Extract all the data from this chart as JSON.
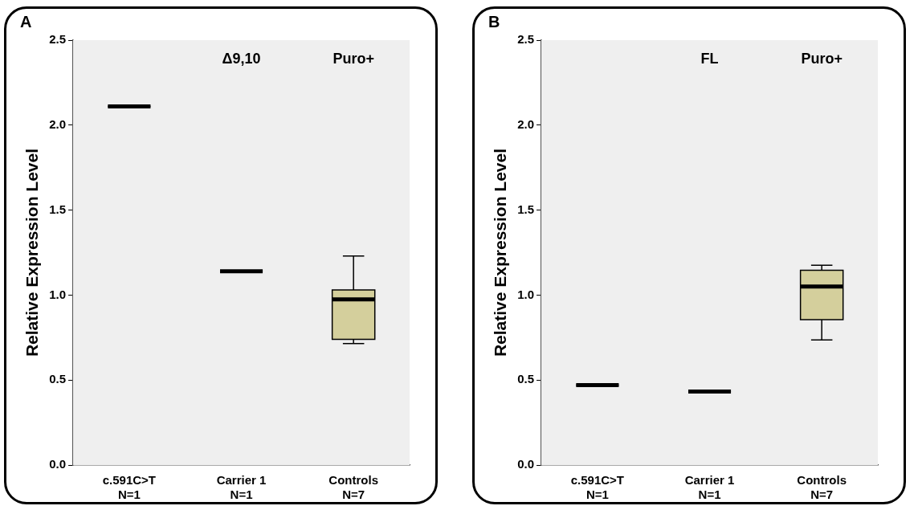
{
  "chart_data": [
    {
      "type": "box",
      "title": "A",
      "ylabel": "Relative Expression Level",
      "categories": [
        "c.591C>T\nN=1",
        "Carrier 1\nN=1",
        "Controls\nN=7"
      ],
      "colors": [
        "#000000",
        "#000000",
        "#d4cf9c"
      ],
      "boxes": [
        {
          "low": 2.11,
          "q1": 2.11,
          "median": 2.11,
          "q3": 2.11,
          "high": 2.11
        },
        {
          "low": 1.14,
          "q1": 1.14,
          "median": 1.14,
          "q3": 1.14,
          "high": 1.14
        },
        {
          "low": 0.715,
          "q1": 0.74,
          "median": 0.975,
          "q3": 1.03,
          "high": 1.23
        }
      ],
      "ylim": [
        0,
        2.5
      ],
      "yticks": [
        {
          "value": 0,
          "label": "0.0"
        },
        {
          "value": 0.5,
          "label": "0.5"
        },
        {
          "value": 1,
          "label": "1.0"
        },
        {
          "value": 1.5,
          "label": "1.5"
        },
        {
          "value": 2,
          "label": "2.0"
        },
        {
          "value": 2.5,
          "label": "2.5"
        }
      ],
      "annotations": [
        "Δ9,10",
        "Puro+"
      ],
      "grid": false
    },
    {
      "type": "box",
      "title": "B",
      "ylabel": "Relative Expression Level",
      "categories": [
        "c.591C>T\nN=1",
        "Carrier 1\nN=1",
        "Controls\nN=7"
      ],
      "colors": [
        "#000000",
        "#000000",
        "#d4cf9c"
      ],
      "boxes": [
        {
          "low": 0.47,
          "q1": 0.47,
          "median": 0.47,
          "q3": 0.47,
          "high": 0.47
        },
        {
          "low": 0.433,
          "q1": 0.433,
          "median": 0.433,
          "q3": 0.433,
          "high": 0.433
        },
        {
          "low": 0.736,
          "q1": 0.855,
          "median": 1.05,
          "q3": 1.146,
          "high": 1.176
        }
      ],
      "ylim": [
        0,
        2.5
      ],
      "yticks": [
        {
          "value": 0,
          "label": "0.0"
        },
        {
          "value": 0.5,
          "label": "0.5"
        },
        {
          "value": 1,
          "label": "1.0"
        },
        {
          "value": 1.5,
          "label": "1.5"
        },
        {
          "value": 2,
          "label": "2.0"
        },
        {
          "value": 2.5,
          "label": "2.5"
        }
      ],
      "annotations": [
        "FL",
        "Puro+"
      ],
      "grid": false
    }
  ]
}
